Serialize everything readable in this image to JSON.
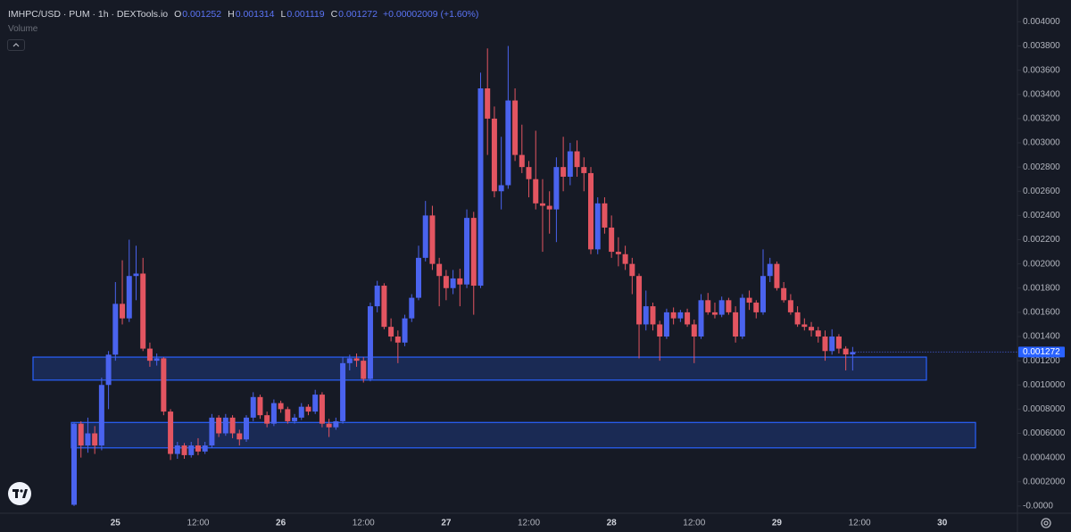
{
  "chart_data": {
    "type": "candlestick",
    "title": "IMHPC/USD · PUM · 1h · DEXTools.io",
    "ohlc_labels": [
      "O",
      "H",
      "L",
      "C"
    ],
    "change": "+0.00002009 (+1.60%)",
    "volume_label": "Volume",
    "up_color": "#4a63ee",
    "down_color": "#e35561",
    "categories": [
      null,
      null,
      null,
      null,
      null,
      null,
      "25",
      null,
      null,
      null,
      null,
      null,
      null,
      null,
      null,
      null,
      null,
      null,
      "12:00",
      null,
      null,
      null,
      null,
      null,
      null,
      null,
      null,
      null,
      null,
      null,
      "26",
      null,
      null,
      null,
      null,
      null,
      null,
      null,
      null,
      null,
      null,
      null,
      "12:00",
      null,
      null,
      null,
      null,
      null,
      null,
      null,
      null,
      null,
      null,
      null,
      "27",
      null,
      null,
      null,
      null,
      null,
      null,
      null,
      null,
      null,
      null,
      null,
      "12:00",
      null,
      null,
      null,
      null,
      null,
      null,
      null,
      null,
      null,
      null,
      null,
      "28",
      null,
      null,
      null,
      null,
      null,
      null,
      null,
      null,
      null,
      null,
      null,
      "12:00",
      null,
      null,
      null,
      null,
      null,
      null,
      null,
      null,
      null,
      null,
      null,
      "29",
      null,
      null,
      null,
      null,
      null,
      null,
      null,
      null,
      null,
      null,
      null,
      "12:00",
      null,
      null,
      null,
      null,
      null,
      null,
      null,
      null,
      null,
      null,
      null,
      "30",
      null,
      null,
      null,
      null,
      null,
      null,
      null
    ],
    "open": [
      1e-05,
      0.00068,
      0.0005,
      0.0006,
      0.0005,
      0.001,
      0.00125,
      0.00167,
      0.00155,
      0.0019,
      0.00192,
      0.0013,
      0.0012,
      0.00122,
      0.00078,
      0.00043,
      0.0005,
      0.00042,
      0.0005,
      0.00045,
      0.0005,
      0.00073,
      0.0006,
      0.00073,
      0.0006,
      0.00055,
      0.00073,
      0.0009,
      0.00075,
      0.00068,
      0.00085,
      0.0008,
      0.0007,
      0.00073,
      0.00082,
      0.00078,
      0.00092,
      0.00068,
      0.00065,
      0.0007,
      0.00118,
      0.00122,
      0.0012,
      0.00105,
      0.00165,
      0.00182,
      0.00148,
      0.0014,
      0.00135,
      0.00155,
      0.00172,
      0.00205,
      0.0024,
      0.002,
      0.0019,
      0.0018,
      0.00188,
      0.00183,
      0.00238,
      0.00182,
      0.00345,
      0.0032,
      0.0026,
      0.00265,
      0.00335,
      0.0029,
      0.0028,
      0.0027,
      0.0025,
      0.00248,
      0.00245,
      0.0028,
      0.00272,
      0.00293,
      0.0028,
      0.00275,
      0.00212,
      0.0025,
      0.0023,
      0.0021,
      0.00208,
      0.002,
      0.0019,
      0.0015,
      0.00165,
      0.0015,
      0.0014,
      0.0016,
      0.00155,
      0.0016,
      0.0015,
      0.0014,
      0.0017,
      0.0016,
      0.00158,
      0.0017,
      0.0016,
      0.0014,
      0.00172,
      0.00168,
      0.0016,
      0.0019,
      0.002,
      0.0018,
      0.0017,
      0.0016,
      0.0015,
      0.00148,
      0.00145,
      0.0014,
      0.00128,
      0.0014,
      0.0013,
      0.001252,
      null,
      null,
      null,
      null,
      null,
      null,
      null,
      null,
      null,
      null,
      null,
      null,
      null,
      null,
      null,
      null,
      null,
      null,
      null,
      null
    ],
    "high": [
      0.00069,
      0.0007,
      0.00073,
      0.00066,
      0.00106,
      0.00128,
      0.00185,
      0.00203,
      0.0022,
      0.00215,
      0.00205,
      0.00135,
      0.00126,
      0.00123,
      0.0008,
      0.00053,
      0.00052,
      0.00053,
      0.00056,
      0.00053,
      0.00076,
      0.00075,
      0.00076,
      0.00075,
      0.00063,
      0.00075,
      0.00094,
      0.00092,
      0.00078,
      0.00088,
      0.00087,
      0.00082,
      0.00076,
      0.00085,
      0.00084,
      0.00096,
      0.00094,
      0.00072,
      0.00073,
      0.00123,
      0.00125,
      0.00126,
      0.00123,
      0.00168,
      0.00186,
      0.00184,
      0.00155,
      0.00145,
      0.00158,
      0.00175,
      0.00215,
      0.00252,
      0.00248,
      0.00205,
      0.00195,
      0.00195,
      0.00196,
      0.00245,
      0.00243,
      0.00358,
      0.00378,
      0.0033,
      0.00305,
      0.0038,
      0.00345,
      0.00315,
      0.00285,
      0.0031,
      0.0027,
      0.0026,
      0.00288,
      0.00305,
      0.003,
      0.00302,
      0.00288,
      0.0028,
      0.00255,
      0.00255,
      0.0024,
      0.00222,
      0.00215,
      0.00205,
      0.00192,
      0.00178,
      0.00168,
      0.00153,
      0.00163,
      0.00164,
      0.00162,
      0.00163,
      0.00154,
      0.00175,
      0.00176,
      0.00168,
      0.00173,
      0.00172,
      0.00165,
      0.00175,
      0.00178,
      0.0017,
      0.00212,
      0.00205,
      0.00202,
      0.00185,
      0.00175,
      0.00165,
      0.00155,
      0.00152,
      0.00148,
      0.00145,
      0.00146,
      0.00142,
      0.00132,
      0.001314,
      null,
      null,
      null,
      null,
      null,
      null,
      null,
      null,
      null,
      null,
      null,
      null,
      null,
      null,
      null,
      null,
      null,
      null,
      null,
      null
    ],
    "low": [
      0,
      0.0004,
      0.00044,
      0.00043,
      0.00046,
      0.0008,
      0.0012,
      0.0015,
      0.00152,
      0.0017,
      0.00128,
      0.00115,
      0.00116,
      0.00075,
      0.00038,
      0.00039,
      0.00039,
      0.0004,
      0.00042,
      0.00043,
      0.00048,
      0.00057,
      0.00058,
      0.00056,
      0.0005,
      0.00053,
      0.0007,
      0.00072,
      0.00065,
      0.00066,
      0.00077,
      0.00068,
      0.00068,
      0.00071,
      0.00075,
      0.00076,
      0.00065,
      0.00057,
      0.00063,
      0.00068,
      0.00112,
      0.00115,
      0.00102,
      0.00103,
      0.0016,
      0.00146,
      0.00136,
      0.00118,
      0.00132,
      0.00152,
      0.0017,
      0.00202,
      0.00195,
      0.00165,
      0.0017,
      0.00175,
      0.00165,
      0.0018,
      0.00158,
      0.0018,
      0.0029,
      0.00255,
      0.00245,
      0.00262,
      0.00285,
      0.00275,
      0.00255,
      0.00245,
      0.0021,
      0.00225,
      0.00218,
      0.0026,
      0.00265,
      0.00272,
      0.0026,
      0.00208,
      0.00208,
      0.00225,
      0.00205,
      0.00198,
      0.00195,
      0.00175,
      0.00122,
      0.00145,
      0.00145,
      0.0012,
      0.00138,
      0.0015,
      0.00152,
      0.00148,
      0.00118,
      0.00138,
      0.00158,
      0.00155,
      0.00156,
      0.00158,
      0.00135,
      0.00138,
      0.00162,
      0.00155,
      0.00158,
      0.00185,
      0.00178,
      0.00168,
      0.00158,
      0.00148,
      0.00145,
      0.0014,
      0.00135,
      0.0012,
      0.00125,
      0.00126,
      0.00112,
      0.001119,
      null,
      null,
      null,
      null,
      null,
      null,
      null,
      null,
      null,
      null,
      null,
      null,
      null,
      null,
      null,
      null,
      null,
      null,
      null,
      null
    ],
    "close": [
      0.00068,
      0.0005,
      0.0006,
      0.0005,
      0.001,
      0.00125,
      0.00167,
      0.00155,
      0.0019,
      0.00192,
      0.0013,
      0.0012,
      0.00122,
      0.00078,
      0.00043,
      0.0005,
      0.00042,
      0.0005,
      0.00045,
      0.0005,
      0.00073,
      0.0006,
      0.00073,
      0.0006,
      0.00055,
      0.00073,
      0.0009,
      0.00075,
      0.00068,
      0.00085,
      0.0008,
      0.0007,
      0.00073,
      0.00082,
      0.00078,
      0.00092,
      0.00068,
      0.00065,
      0.0007,
      0.00118,
      0.00122,
      0.0012,
      0.00105,
      0.00165,
      0.00182,
      0.00148,
      0.0014,
      0.00135,
      0.00155,
      0.00172,
      0.00205,
      0.0024,
      0.002,
      0.0019,
      0.0018,
      0.00188,
      0.00183,
      0.00238,
      0.00182,
      0.00345,
      0.0032,
      0.0026,
      0.00265,
      0.00335,
      0.0029,
      0.0028,
      0.0027,
      0.0025,
      0.00248,
      0.00245,
      0.0028,
      0.00272,
      0.00293,
      0.0028,
      0.00275,
      0.00212,
      0.0025,
      0.0023,
      0.0021,
      0.00208,
      0.002,
      0.0019,
      0.0015,
      0.00165,
      0.0015,
      0.0014,
      0.0016,
      0.00155,
      0.0016,
      0.0015,
      0.0014,
      0.0017,
      0.0016,
      0.00158,
      0.0017,
      0.0016,
      0.0014,
      0.00172,
      0.00168,
      0.0016,
      0.0019,
      0.002,
      0.0018,
      0.0017,
      0.0016,
      0.0015,
      0.00148,
      0.00145,
      0.0014,
      0.00128,
      0.0014,
      0.0013,
      0.001252,
      0.001272,
      null,
      null,
      null,
      null,
      null,
      null,
      null,
      null,
      null,
      null,
      null,
      null,
      null,
      null,
      null,
      null,
      null,
      null,
      null,
      null
    ],
    "zones": [
      {
        "low": 0.00104,
        "high": 0.00123,
        "color": "#2962ff"
      },
      {
        "low": 0.00048,
        "high": 0.00069,
        "color": "#2962ff"
      }
    ],
    "ylim": [
      -6e-05,
      0.00418
    ],
    "yticks": [
      {
        "value": 0,
        "label": "-0.0000"
      },
      {
        "value": 0.0002,
        "label": "0.0002000"
      },
      {
        "value": 0.0004,
        "label": "0.0004000"
      },
      {
        "value": 0.0006,
        "label": "0.0006000"
      },
      {
        "value": 0.0008,
        "label": "0.0008000"
      },
      {
        "value": 0.001,
        "label": "0.0010000"
      },
      {
        "value": 0.0012,
        "label": "0.001200"
      },
      {
        "value": 0.0014,
        "label": "0.001400"
      },
      {
        "value": 0.0016,
        "label": "0.001600"
      },
      {
        "value": 0.0018,
        "label": "0.001800"
      },
      {
        "value": 0.002,
        "label": "0.002000"
      },
      {
        "value": 0.0022,
        "label": "0.002200"
      },
      {
        "value": 0.0024,
        "label": "0.002400"
      },
      {
        "value": 0.0026,
        "label": "0.002600"
      },
      {
        "value": 0.0028,
        "label": "0.002800"
      },
      {
        "value": 0.003,
        "label": "0.003000"
      },
      {
        "value": 0.0032,
        "label": "0.003200"
      },
      {
        "value": 0.0034,
        "label": "0.003400"
      },
      {
        "value": 0.0036,
        "label": "0.003600"
      },
      {
        "value": 0.0038,
        "label": "0.003800"
      },
      {
        "value": 0.004,
        "label": "0.004000"
      }
    ],
    "grid": false
  }
}
